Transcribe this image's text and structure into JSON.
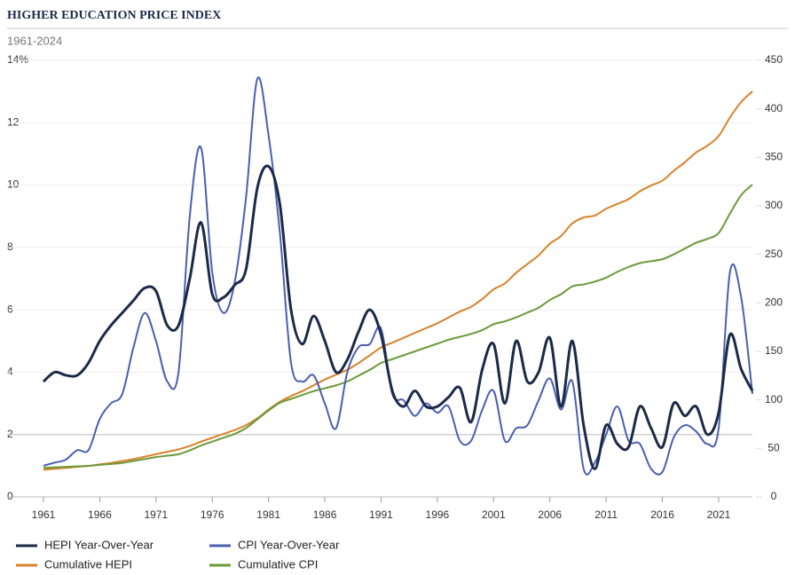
{
  "chart_data": {
    "type": "line",
    "title": "HIGHER EDUCATION PRICE INDEX",
    "subtitle": "1961-2024",
    "x": [
      1961,
      1962,
      1963,
      1964,
      1965,
      1966,
      1967,
      1968,
      1969,
      1970,
      1971,
      1972,
      1973,
      1974,
      1975,
      1976,
      1977,
      1978,
      1979,
      1980,
      1981,
      1982,
      1983,
      1984,
      1985,
      1986,
      1987,
      1988,
      1989,
      1990,
      1991,
      1992,
      1993,
      1994,
      1995,
      1996,
      1997,
      1998,
      1999,
      2000,
      2001,
      2002,
      2003,
      2004,
      2005,
      2006,
      2007,
      2008,
      2009,
      2010,
      2011,
      2012,
      2013,
      2014,
      2015,
      2016,
      2017,
      2018,
      2019,
      2020,
      2021,
      2022,
      2023,
      2024
    ],
    "xlim": [
      1961,
      2024
    ],
    "xticks": [
      1961,
      1966,
      1971,
      1976,
      1981,
      1986,
      1991,
      1996,
      2001,
      2006,
      2011,
      2016,
      2021
    ],
    "ylim": [
      0,
      14
    ],
    "yticks": [
      0,
      2,
      4,
      6,
      8,
      10,
      12,
      {
        "value": 14,
        "label": "14%"
      }
    ],
    "y2lim": [
      0,
      450
    ],
    "y2ticks": [
      0,
      50,
      100,
      150,
      200,
      250,
      300,
      350,
      400,
      450
    ],
    "grid": true,
    "legend": "bottom",
    "series": [
      {
        "name": "HEPI Year-Over-Year",
        "color": "#1b2a47",
        "values": [
          3.7,
          4.0,
          3.9,
          3.9,
          4.3,
          5.0,
          5.5,
          5.9,
          6.3,
          6.7,
          6.6,
          5.5,
          5.5,
          7.0,
          8.8,
          6.5,
          6.4,
          6.8,
          7.3,
          9.9,
          10.6,
          9.4,
          6.0,
          4.9,
          5.8,
          5.0,
          4.0,
          4.4,
          5.3,
          6.0,
          5.2,
          3.4,
          2.9,
          3.4,
          2.9,
          2.9,
          3.2,
          3.5,
          2.4,
          4.1,
          4.9,
          3.0,
          5.0,
          3.7,
          4.0,
          5.1,
          2.9,
          5.0,
          2.3,
          0.9,
          2.3,
          1.7,
          1.6,
          2.9,
          2.2,
          1.6,
          3.0,
          2.6,
          2.9,
          2.0,
          2.7,
          5.2,
          4.1,
          3.4
        ]
      },
      {
        "name": "CPI Year-Over-Year",
        "color": "#4a5fb0",
        "values": [
          1.0,
          1.1,
          1.2,
          1.5,
          1.5,
          2.5,
          3.0,
          3.3,
          4.8,
          5.9,
          5.0,
          3.7,
          4.0,
          9.0,
          11.2,
          7.2,
          5.9,
          6.9,
          9.6,
          13.4,
          11.6,
          8.5,
          4.3,
          3.7,
          3.9,
          3.0,
          2.2,
          4.0,
          4.8,
          4.9,
          5.4,
          3.3,
          3.1,
          2.6,
          3.0,
          2.7,
          2.9,
          1.8,
          1.8,
          2.8,
          3.4,
          1.8,
          2.2,
          2.3,
          3.1,
          3.8,
          2.8,
          3.7,
          0.9,
          1.1,
          2.0,
          2.9,
          1.8,
          1.7,
          0.9,
          0.8,
          1.9,
          2.3,
          2.1,
          1.7,
          2.2,
          7.2,
          6.4,
          3.3
        ]
      },
      {
        "name": "Cumulative HEPI",
        "color": "#d9822b",
        "axis": "y2",
        "values": [
          28,
          29,
          30,
          31,
          32,
          33.5,
          35,
          37,
          39,
          41.5,
          44,
          46.5,
          49,
          52.5,
          57,
          61,
          65,
          69,
          74,
          81,
          90,
          98,
          104,
          109,
          115,
          121,
          126,
          131,
          138,
          146,
          154,
          159,
          164,
          169,
          174,
          179,
          185,
          191,
          196,
          204,
          214,
          220,
          231,
          240,
          249,
          261,
          269,
          282,
          288,
          290,
          297,
          302,
          307,
          315,
          321,
          326,
          336,
          345,
          355,
          362,
          372,
          391,
          407,
          418
        ]
      },
      {
        "name": "Cumulative CPI",
        "color": "#6b9a3a",
        "axis": "y2",
        "values": [
          30,
          30.5,
          31,
          31.5,
          32,
          33,
          34,
          35,
          37,
          39,
          41,
          42.5,
          44,
          48,
          53,
          57,
          61,
          65,
          71,
          80,
          89,
          97,
          101,
          105,
          109,
          112,
          115,
          119,
          125,
          131,
          138,
          142,
          146,
          150,
          154,
          158,
          162,
          165,
          168,
          172,
          178,
          181,
          185,
          190,
          195,
          203,
          209,
          217,
          219,
          222,
          226,
          232,
          237,
          241,
          243,
          245,
          250,
          256,
          262,
          266,
          272,
          292,
          311,
          322
        ]
      }
    ]
  }
}
